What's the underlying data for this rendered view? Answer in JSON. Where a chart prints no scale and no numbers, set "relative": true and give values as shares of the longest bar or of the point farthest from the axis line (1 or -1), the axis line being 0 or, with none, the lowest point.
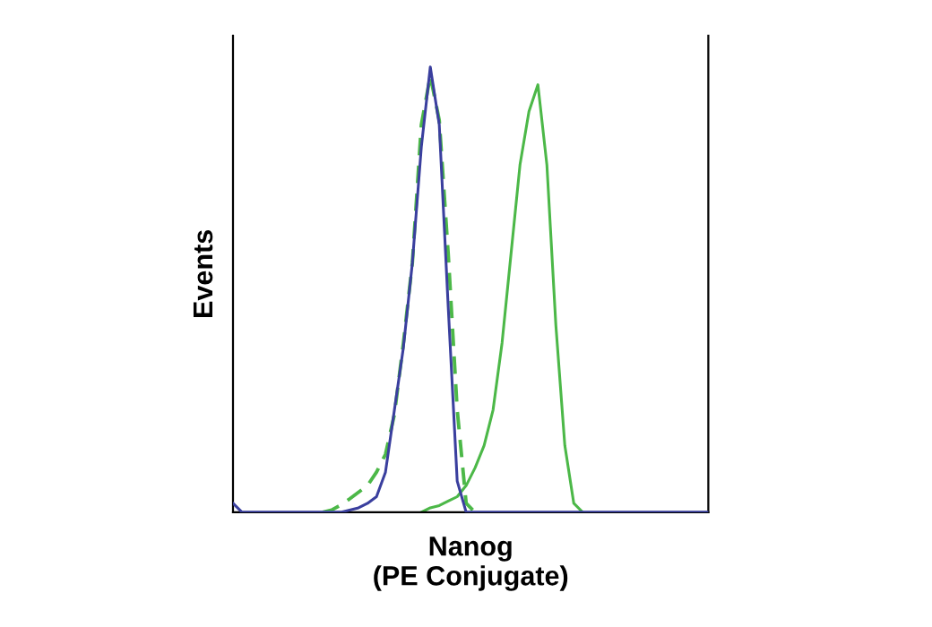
{
  "chart_data": {
    "type": "line",
    "relative": true,
    "xlabel": "Nanog\n(PE Conjugate)",
    "ylabel": "Events",
    "legend": false,
    "grid": false,
    "marker": "none",
    "categories": [
      null,
      null,
      null,
      null,
      null,
      null,
      null,
      null,
      null,
      null,
      null,
      null,
      null,
      null,
      null,
      null,
      null,
      null,
      null,
      null,
      null,
      null,
      null,
      null,
      null,
      null,
      null,
      null,
      null,
      null,
      null,
      null,
      null,
      null,
      null,
      null,
      null,
      null,
      null,
      null,
      null,
      null,
      null,
      null,
      null,
      null,
      null,
      null,
      null,
      null,
      null,
      null,
      null,
      null
    ],
    "series": [
      {
        "color": "#4cb848",
        "line_style": "solid",
        "values": [
          null,
          null,
          null,
          null,
          null,
          null,
          null,
          null,
          null,
          null,
          null,
          null,
          null,
          null,
          null,
          null,
          null,
          null,
          null,
          null,
          null,
          0,
          0.01,
          0.015,
          0.025,
          0.035,
          0.06,
          0.1,
          0.15,
          0.23,
          0.38,
          0.58,
          0.78,
          0.9,
          0.96,
          0.78,
          0.42,
          0.15,
          0.02,
          0,
          null,
          null,
          null,
          null,
          null,
          null,
          null,
          null,
          null,
          null,
          null,
          null,
          null,
          null
        ]
      },
      {
        "color": "#4cb848",
        "line_style": "dashed",
        "values": [
          null,
          null,
          null,
          null,
          null,
          null,
          null,
          null,
          null,
          null,
          0,
          0.005,
          0.016,
          0.03,
          0.045,
          0.06,
          0.09,
          0.13,
          0.22,
          0.38,
          0.56,
          0.87,
          0.98,
          0.88,
          0.58,
          0.23,
          0.02,
          0,
          null,
          null,
          null,
          null,
          null,
          null,
          null,
          null,
          null,
          null,
          null,
          null,
          null,
          null,
          null,
          null,
          null,
          null,
          null,
          null,
          null,
          null,
          null,
          null,
          null,
          null
        ]
      },
      {
        "color": "#3a3f9e",
        "line_style": "solid",
        "values": [
          0.02,
          0,
          0,
          0,
          0,
          0,
          0,
          0,
          0,
          0,
          0,
          0,
          0,
          0.005,
          0.01,
          0.02,
          0.035,
          0.09,
          0.23,
          0.37,
          0.56,
          0.82,
          1.0,
          0.87,
          0.46,
          0.07,
          0,
          0,
          0,
          0,
          0,
          0,
          0,
          0,
          0,
          0,
          0,
          0,
          0,
          0,
          0,
          0,
          0,
          0,
          0,
          0,
          0,
          0,
          0,
          0,
          0,
          0,
          0,
          0
        ]
      }
    ]
  }
}
